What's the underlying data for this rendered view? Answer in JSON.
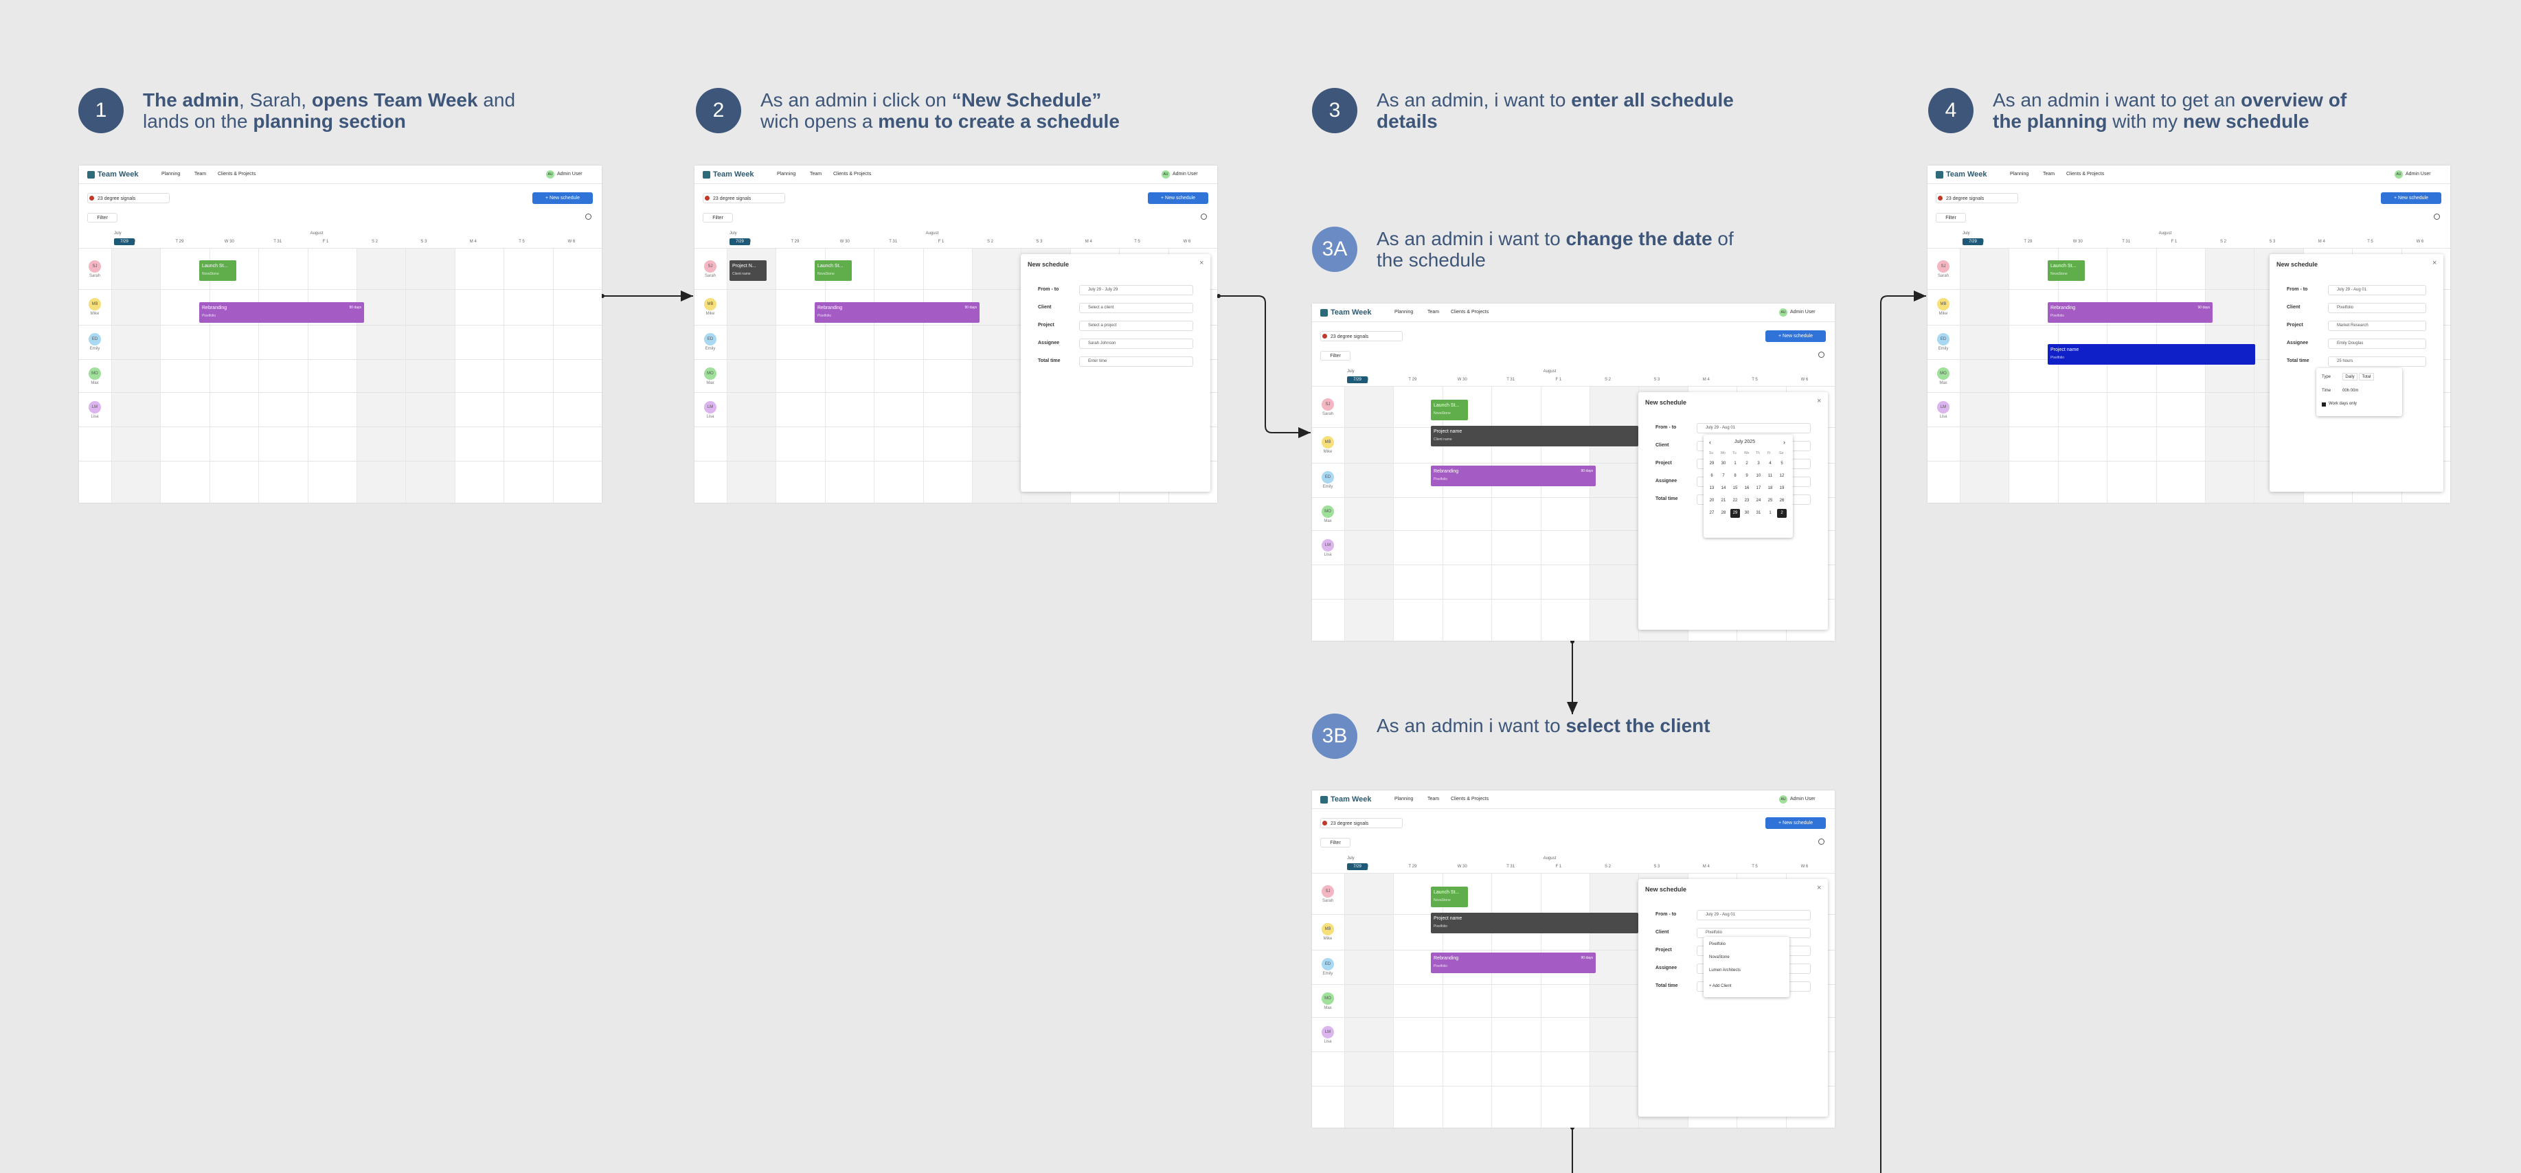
{
  "steps": [
    {
      "number": "1",
      "caption": [
        {
          "text": "The admin",
          "bold": true
        },
        {
          "text": ", Sarah, ",
          "bold": false
        },
        {
          "text": "opens Team Week",
          "bold": true
        },
        {
          "text": " and lands on the ",
          "bold": false
        },
        {
          "text": "planning section",
          "bold": true
        }
      ]
    },
    {
      "number": "2",
      "caption": [
        {
          "text": "As an admin i click on ",
          "bold": false
        },
        {
          "text": "“New Schedule”",
          "bold": true
        },
        {
          "text": " wich opens a ",
          "bold": false
        },
        {
          "text": "menu to create a schedule",
          "bold": true
        }
      ]
    },
    {
      "number": "3",
      "caption": [
        {
          "text": "As an admin, i want to ",
          "bold": false
        },
        {
          "text": "enter all schedule details",
          "bold": true
        }
      ]
    },
    {
      "number": "3A",
      "caption": [
        {
          "text": "As an admin i want to ",
          "bold": false
        },
        {
          "text": "change the date",
          "bold": true
        },
        {
          "text": " of the schedule",
          "bold": false
        }
      ]
    },
    {
      "number": "3B",
      "caption": [
        {
          "text": "As an admin i want to ",
          "bold": false
        },
        {
          "text": "select the client",
          "bold": true
        }
      ]
    },
    {
      "number": "4",
      "caption": [
        {
          "text": "As an admin i want to get an ",
          "bold": false
        },
        {
          "text": "overview of the planning",
          "bold": true
        },
        {
          "text": " with my ",
          "bold": false
        },
        {
          "text": "new schedule",
          "bold": true
        }
      ]
    }
  ],
  "app": {
    "logo": "Team Week",
    "nav": [
      "Planning",
      "Team",
      "Clients & Projects"
    ],
    "user_initials": "AU",
    "user": "Admin User",
    "org": "23 degree signals",
    "new_button": "+ New schedule",
    "filter": "Filter",
    "today": "7/29",
    "months": [
      "July",
      "August"
    ],
    "days": [
      "M 28",
      "T 29",
      "W 30",
      "T 31",
      "F 1",
      "S 2",
      "S 3",
      "M 4",
      "T 5",
      "W 6"
    ],
    "people": [
      {
        "initials": "SJ",
        "name": "Sarah",
        "color": "#f4b6c2"
      },
      {
        "initials": "MB",
        "name": "Mike",
        "color": "#f7df7a"
      },
      {
        "initials": "ED",
        "name": "Emily",
        "color": "#a9d8f2"
      },
      {
        "initials": "MO",
        "name": "Max",
        "color": "#9fe09a"
      },
      {
        "initials": "LM",
        "name": "Lisa",
        "color": "#dcb5ef"
      }
    ]
  },
  "screens": [
    {
      "tasks": [
        {
          "label": "Launch St...",
          "sub": "NovaStone",
          "color": "#5fae4b"
        },
        {
          "label": "Rebranding",
          "sub": "Pixelfolio",
          "extra": "90 days",
          "color": "#a55bc4"
        }
      ]
    },
    {
      "tasks": [
        {
          "label": "Project N...",
          "sub": "Client name",
          "color": "#4a4a4a"
        },
        {
          "label": "Launch St...",
          "sub": "NovaStone",
          "color": "#5fae4b"
        },
        {
          "label": "Rebranding",
          "sub": "Pixelfolio",
          "extra": "90 days",
          "color": "#a55bc4"
        }
      ],
      "panel": {
        "title": "New schedule",
        "close": "×",
        "fields": [
          {
            "label": "From - to",
            "value": "July 29 - July 29"
          },
          {
            "label": "Client",
            "value": "Select a client"
          },
          {
            "label": "Project",
            "value": "Select a project"
          },
          {
            "label": "Assignee",
            "value": "Sarah Johnson"
          },
          {
            "label": "Total time",
            "value": "Enter time"
          }
        ]
      }
    },
    {
      "tasks": [
        {
          "label": "Launch St...",
          "sub": "NovaStone",
          "color": "#5fae4b"
        },
        {
          "label": "Project name",
          "sub": "Client name",
          "color": "#4a4a4a"
        },
        {
          "label": "Rebranding",
          "sub": "Pixelfolio",
          "extra": "90 days",
          "color": "#a55bc4"
        }
      ],
      "panel": {
        "title": "New schedule",
        "close": "×",
        "fields": [
          {
            "label": "From - to",
            "value": "July 29 - Aug 01"
          },
          {
            "label": "Client",
            "value": ""
          },
          {
            "label": "Project",
            "value": ""
          },
          {
            "label": "Assignee",
            "value": ""
          },
          {
            "label": "Total time",
            "value": ""
          }
        ]
      },
      "calendar": {
        "month": "July 2025",
        "prev": "‹",
        "next": "›",
        "weekdays": [
          "Su",
          "Mo",
          "Tu",
          "We",
          "Th",
          "Fr",
          "Sa"
        ],
        "days": [
          "29",
          "30",
          "1",
          "2",
          "3",
          "4",
          "5",
          "6",
          "7",
          "8",
          "9",
          "10",
          "11",
          "12",
          "13",
          "14",
          "15",
          "16",
          "17",
          "18",
          "19",
          "20",
          "21",
          "22",
          "23",
          "24",
          "25",
          "26",
          "27",
          "28",
          "29",
          "30",
          "31",
          "1",
          "2"
        ]
      }
    },
    {
      "tasks": [
        {
          "label": "Launch St...",
          "sub": "NovaStone",
          "color": "#5fae4b"
        },
        {
          "label": "Project name",
          "sub": "Pixelfolio",
          "color": "#4a4a4a"
        },
        {
          "label": "Rebranding",
          "sub": "Pixelfolio",
          "extra": "90 days",
          "color": "#a55bc4"
        }
      ],
      "panel": {
        "title": "New schedule",
        "close": "×",
        "fields": [
          {
            "label": "From - to",
            "value": "July 29 - Aug 01"
          },
          {
            "label": "Client",
            "value": "Pixelfolio"
          },
          {
            "label": "Project",
            "value": ""
          },
          {
            "label": "Assignee",
            "value": ""
          },
          {
            "label": "Total time",
            "value": ""
          }
        ]
      },
      "dropdown": [
        "Pixelfolio",
        "NovaStone",
        "Lumen Architects",
        "+ Add Client"
      ]
    },
    {
      "tasks": [
        {
          "label": "Launch St...",
          "sub": "NovaStone",
          "color": "#5fae4b"
        },
        {
          "label": "Rebranding",
          "sub": "Pixelfolio",
          "extra": "90 days",
          "color": "#a55bc4"
        },
        {
          "label": "Project name",
          "sub": "Pixelfolio",
          "color": "#1020c8"
        }
      ],
      "panel": {
        "title": "New schedule",
        "close": "×",
        "fields": [
          {
            "label": "From - to",
            "value": "July 29 - Aug 01"
          },
          {
            "label": "Client",
            "value": "Pixelfolio"
          },
          {
            "label": "Project",
            "value": "Market Research"
          },
          {
            "label": "Assignee",
            "value": "Emily Douglas"
          },
          {
            "label": "Total time",
            "value": "25 hours"
          }
        ]
      },
      "timepopup": {
        "type_label": "Type",
        "options": [
          "Daily",
          "Total"
        ],
        "time_label": "Time",
        "time": "00h 00m",
        "checkbox": "Work days only"
      }
    }
  ]
}
